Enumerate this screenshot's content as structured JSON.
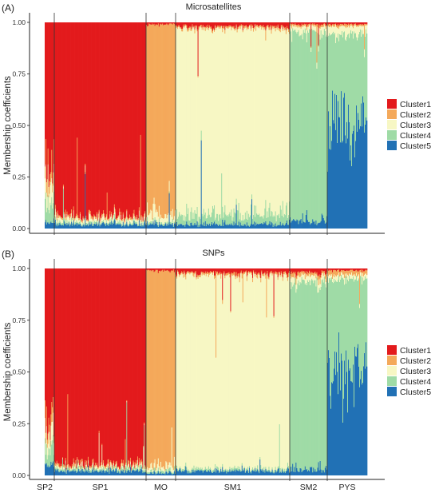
{
  "figure": {
    "type": "structure-barplot",
    "shared_ylabel": "Membership coefficients",
    "y_ticks": [
      "0.00",
      "0.25",
      "0.50",
      "0.75",
      "1.00"
    ],
    "ylim": [
      0,
      1
    ],
    "legend_placement": "right",
    "population_labels": [
      "SP2",
      "SP1",
      "MO",
      "SM1",
      "SM2",
      "PYS"
    ],
    "clusters": [
      {
        "name": "Cluster1",
        "color": "#e31a1c"
      },
      {
        "name": "Cluster2",
        "color": "#f4a95b"
      },
      {
        "name": "Cluster3",
        "color": "#f7f7c4"
      },
      {
        "name": "Cluster4",
        "color": "#9fdba6"
      },
      {
        "name": "Cluster5",
        "color": "#2171b5"
      }
    ]
  },
  "chart_data": [
    {
      "type": "bar",
      "stacked": true,
      "panel_label": "(A)",
      "title": "Microsatellites",
      "ylabel": "Membership coefficients",
      "ylim": [
        0,
        1
      ],
      "legend_placement": "right",
      "legend": [
        "Cluster1",
        "Cluster2",
        "Cluster3",
        "Cluster4",
        "Cluster5"
      ],
      "populations": [
        {
          "name": "SP2",
          "n": 13,
          "Cluster1": 0.7,
          "Cluster2": 0.08,
          "Cluster3": 0.1,
          "Cluster4": 0.09,
          "Cluster5": 0.03
        },
        {
          "name": "SP1",
          "n": 126,
          "Cluster1": 0.94,
          "Cluster2": 0.01,
          "Cluster3": 0.02,
          "Cluster4": 0.01,
          "Cluster5": 0.02
        },
        {
          "name": "MO",
          "n": 35,
          "Cluster1": 0.01,
          "Cluster2": 0.92,
          "Cluster3": 0.04,
          "Cluster4": 0.01,
          "Cluster5": 0.02
        },
        {
          "name": "SM1",
          "n": 140,
          "Cluster1": 0.02,
          "Cluster2": 0.01,
          "Cluster3": 0.9,
          "Cluster4": 0.05,
          "Cluster5": 0.02
        },
        {
          "name": "SM2",
          "n": 45,
          "Cluster1": 0.01,
          "Cluster2": 0.01,
          "Cluster3": 0.03,
          "Cluster4": 0.91,
          "Cluster5": 0.04
        },
        {
          "name": "PYS",
          "n": 50,
          "Cluster1": 0.01,
          "Cluster2": 0.01,
          "Cluster3": 0.04,
          "Cluster4": 0.46,
          "Cluster5": 0.48
        }
      ]
    },
    {
      "type": "bar",
      "stacked": true,
      "panel_label": "(B)",
      "title": "SNPs",
      "ylabel": "Membership coefficients",
      "ylim": [
        0,
        1
      ],
      "legend_placement": "right",
      "legend": [
        "Cluster1",
        "Cluster2",
        "Cluster3",
        "Cluster4",
        "Cluster5"
      ],
      "populations": [
        {
          "name": "SP2",
          "n": 13,
          "Cluster1": 0.78,
          "Cluster2": 0.05,
          "Cluster3": 0.06,
          "Cluster4": 0.07,
          "Cluster5": 0.04
        },
        {
          "name": "SP1",
          "n": 126,
          "Cluster1": 0.95,
          "Cluster2": 0.01,
          "Cluster3": 0.01,
          "Cluster4": 0.01,
          "Cluster5": 0.02
        },
        {
          "name": "MO",
          "n": 35,
          "Cluster1": 0.01,
          "Cluster2": 0.95,
          "Cluster3": 0.02,
          "Cluster4": 0.01,
          "Cluster5": 0.01
        },
        {
          "name": "SM1",
          "n": 140,
          "Cluster1": 0.02,
          "Cluster2": 0.01,
          "Cluster3": 0.94,
          "Cluster4": 0.01,
          "Cluster5": 0.02
        },
        {
          "name": "SM2",
          "n": 45,
          "Cluster1": 0.02,
          "Cluster2": 0.02,
          "Cluster3": 0.03,
          "Cluster4": 0.9,
          "Cluster5": 0.03
        },
        {
          "name": "PYS",
          "n": 50,
          "Cluster1": 0.01,
          "Cluster2": 0.02,
          "Cluster3": 0.02,
          "Cluster4": 0.45,
          "Cluster5": 0.5
        }
      ]
    }
  ]
}
